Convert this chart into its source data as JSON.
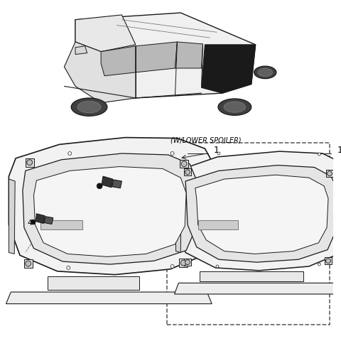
{
  "background_color": "#ffffff",
  "line_color": "#1a1a1a",
  "fig_width": 4.8,
  "fig_height": 5.11,
  "dpi": 100,
  "spoiler_label": "(W/LOWER SPOILER)"
}
